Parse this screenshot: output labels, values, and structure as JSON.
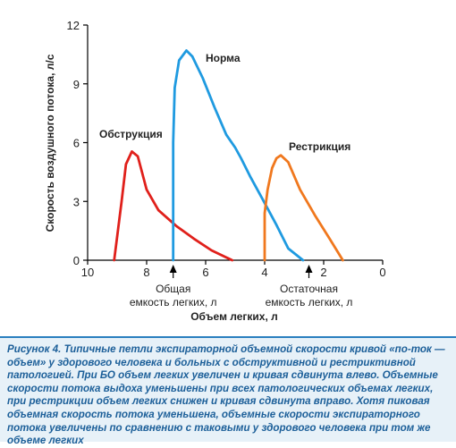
{
  "chart_data": {
    "type": "line",
    "xlabel": "Объем легких, л",
    "ylabel": "Скорость воздушного потока, л/с",
    "x_reversed": true,
    "xlim": [
      10,
      0
    ],
    "ylim": [
      0,
      12
    ],
    "x_ticks": [
      10,
      8,
      6,
      4,
      2,
      0
    ],
    "y_ticks": [
      0,
      3,
      6,
      9,
      12
    ],
    "grid": false,
    "series": [
      {
        "name": "Обструкция",
        "color": "#e0201b",
        "points": [
          [
            9.1,
            0
          ],
          [
            8.85,
            3.0
          ],
          [
            8.7,
            4.9
          ],
          [
            8.5,
            5.55
          ],
          [
            8.3,
            5.3
          ],
          [
            8.0,
            3.6
          ],
          [
            7.6,
            2.55
          ],
          [
            7.0,
            1.75
          ],
          [
            6.4,
            1.1
          ],
          [
            5.8,
            0.5
          ],
          [
            5.1,
            0
          ]
        ]
      },
      {
        "name": "Норма",
        "color": "#1f9ae0",
        "points": [
          [
            7.1,
            0
          ],
          [
            7.1,
            6.0
          ],
          [
            7.05,
            8.8
          ],
          [
            6.9,
            10.2
          ],
          [
            6.65,
            10.7
          ],
          [
            6.45,
            10.4
          ],
          [
            6.1,
            9.3
          ],
          [
            5.7,
            7.8
          ],
          [
            5.3,
            6.4
          ],
          [
            5.0,
            5.75
          ],
          [
            4.8,
            5.2
          ],
          [
            4.5,
            4.3
          ],
          [
            4.1,
            3.2
          ],
          [
            3.6,
            1.8
          ],
          [
            3.2,
            0.6
          ],
          [
            2.7,
            0
          ]
        ]
      },
      {
        "name": "Рестрикция",
        "color": "#f0781e",
        "points": [
          [
            4.0,
            0
          ],
          [
            4.0,
            2.4
          ],
          [
            3.9,
            3.6
          ],
          [
            3.75,
            4.7
          ],
          [
            3.6,
            5.2
          ],
          [
            3.45,
            5.35
          ],
          [
            3.2,
            5.0
          ],
          [
            2.8,
            3.6
          ],
          [
            2.3,
            2.3
          ],
          [
            1.8,
            1.1
          ],
          [
            1.35,
            0
          ]
        ]
      }
    ],
    "annotations": [
      {
        "text": "Общая емкость легких, л",
        "x": 7.1
      },
      {
        "text": "Остаточная емкость легких, л",
        "x": 2.5
      }
    ]
  },
  "caption": "Рисунок 4. Типичные петли экспираторной объемной скорости кривой «по-ток — объем» у здорового человека и больных с обструктивной и рестриктивной патологией. При БО объем легких увеличен и кривая сдвинута влево. Объемные скорости потока выдоха уменьшены при всех патологических объемах легких, при рестрикции объем легких снижен и кривая сдвинута вправо. Хотя пиковая объемная скорость потока уменьшена, объемные скорости экспираторного потока увеличены по сравнению с таковыми у здорового человека при том же объеме легких"
}
